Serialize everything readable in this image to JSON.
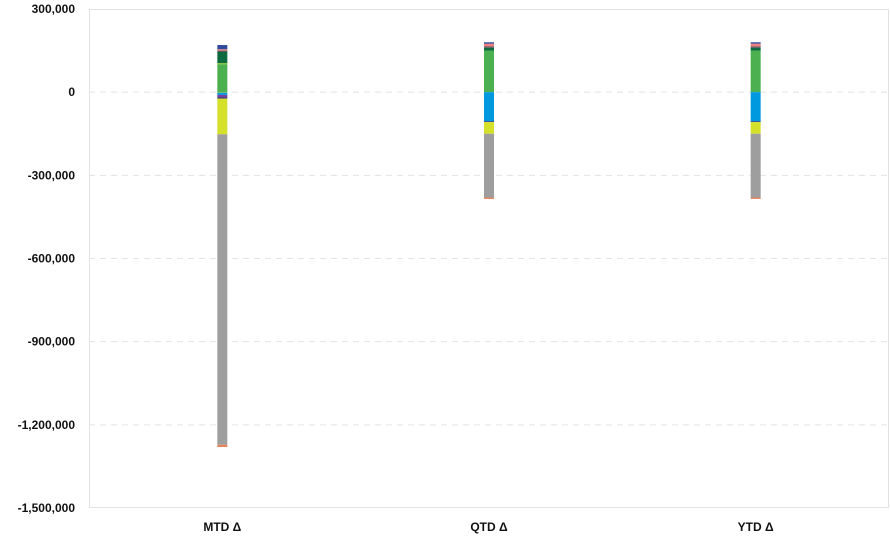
{
  "chart_data": {
    "type": "bar",
    "stacked": true,
    "title": "",
    "xlabel": "",
    "ylabel": "",
    "ylim": [
      -1500000,
      300000
    ],
    "ytick_values": [
      300000,
      0,
      -300000,
      -600000,
      -900000,
      -1200000,
      -1500000
    ],
    "ytick_labels": [
      "300,000",
      "0",
      "-300,000",
      "-600,000",
      "-900,000",
      "-1,200,000",
      "-1,500,000"
    ],
    "grid": "horizontal-dashed",
    "legend": "none",
    "categories": [
      "MTD Δ",
      "QTD Δ",
      "YTD Δ"
    ],
    "series": [
      {
        "color": "#4caf50",
        "values": [
          100000,
          150000,
          150000
        ]
      },
      {
        "color": "#8dc63f",
        "values": [
          5000,
          0,
          0
        ]
      },
      {
        "color": "#8dc63f",
        "values": [
          -2000,
          0,
          0
        ]
      },
      {
        "color": "#0e6b3f",
        "values": [
          40000,
          10000,
          10000
        ]
      },
      {
        "color": "#555555",
        "values": [
          5000,
          5000,
          5000
        ]
      },
      {
        "color": "#f08080",
        "values": [
          5000,
          10000,
          10000
        ]
      },
      {
        "color": "#2e4a9e",
        "values": [
          15000,
          5000,
          5000
        ]
      },
      {
        "color": "#0099e0",
        "values": [
          -8000,
          -105000,
          -105000
        ]
      },
      {
        "color": "#7b3fa0",
        "values": [
          -8000,
          0,
          0
        ]
      },
      {
        "color": "#2d2d7a",
        "values": [
          -5000,
          -3000,
          -3000
        ]
      },
      {
        "color": "#d4e02a",
        "values": [
          -129000,
          -42000,
          -42000
        ]
      },
      {
        "color": "#9e9e9e",
        "values": [
          -1120000,
          -230000,
          -230000
        ]
      },
      {
        "color": "#e8825a",
        "values": [
          -8000,
          -5000,
          -5000
        ]
      }
    ]
  }
}
